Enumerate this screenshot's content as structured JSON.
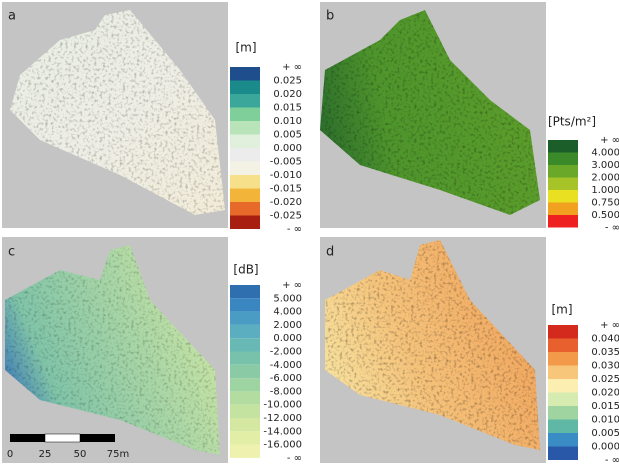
{
  "panels": [
    {
      "letter": "a",
      "legend": {
        "unit": "[m]",
        "labels": [
          "+ ∞",
          "0.025",
          "0.020",
          "0.015",
          "0.010",
          "0.005",
          "0.000",
          "-0.005",
          "-0.010",
          "-0.015",
          "-0.020",
          "-0.025",
          "- ∞"
        ],
        "colors": [
          "#1f4e8c",
          "#1a8a8a",
          "#3aa79a",
          "#7fcf9a",
          "#b9e4b9",
          "#e1f0dc",
          "#ececec",
          "#f4f2e4",
          "#f7e08a",
          "#f2b53a",
          "#e86a2a",
          "#a81e10"
        ]
      }
    },
    {
      "letter": "b",
      "legend": {
        "unit": "[Pts/m²]",
        "labels": [
          "+ ∞",
          "4.000",
          "3.000",
          "2.000",
          "1.000",
          "0.750",
          "0.500",
          "- ∞"
        ],
        "colors": [
          "#1c5e2a",
          "#3a8a2a",
          "#6aa82a",
          "#a6c428",
          "#e8e020",
          "#f2a020",
          "#ee2020"
        ]
      }
    },
    {
      "letter": "c",
      "legend": {
        "unit": "[dB]",
        "labels": [
          "+ ∞",
          "5.000",
          "4.000",
          "2.000",
          "0.000",
          "-2.000",
          "-4.000",
          "-6.000",
          "-8.000",
          "-10.000",
          "-12.000",
          "-14.000",
          "-16.000",
          "- ∞"
        ],
        "colors": [
          "#2f6fb0",
          "#3a86c0",
          "#4a9cc4",
          "#5aaec0",
          "#68b8b6",
          "#78c2ac",
          "#8acba6",
          "#9ed4a2",
          "#b2dca0",
          "#c4e2a0",
          "#d4e8a2",
          "#e2eea6",
          "#eef2ae"
        ]
      },
      "scale_bar": [
        "0",
        "25",
        "50",
        "75m"
      ]
    },
    {
      "letter": "d",
      "legend": {
        "unit": "[m]",
        "labels": [
          "+ ∞",
          "0.040",
          "0.035",
          "0.030",
          "0.025",
          "0.020",
          "0.015",
          "0.010",
          "0.005",
          "0.000",
          "- ∞"
        ],
        "colors": [
          "#d42a1e",
          "#e8602e",
          "#f29a4a",
          "#f8c67a",
          "#fbeeb0",
          "#d6ebb0",
          "#9fd4a0",
          "#5fb7a6",
          "#3a8cc4",
          "#2a58a8"
        ]
      }
    }
  ]
}
